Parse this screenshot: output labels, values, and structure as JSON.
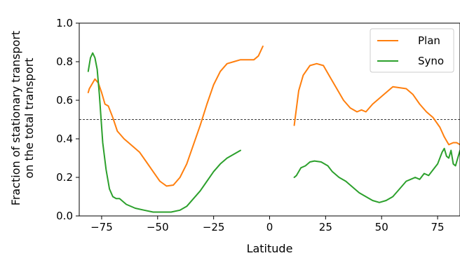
{
  "chart_data": {
    "type": "line",
    "title": "",
    "xlabel": "Latitude",
    "ylabel_lines": [
      "Fraction of stationary transport",
      "on the total transport"
    ],
    "xlim": [
      -85,
      85
    ],
    "ylim": [
      0.0,
      1.0
    ],
    "xticks": [
      -75,
      -50,
      -25,
      0,
      25,
      50,
      75
    ],
    "yticks": [
      0.0,
      0.2,
      0.4,
      0.6,
      0.8,
      1.0
    ],
    "grid": false,
    "legend_position": "top-right",
    "reference_line": {
      "y": 0.5,
      "style": "dashed"
    },
    "series": [
      {
        "name": "Plan",
        "color": "#ff7f0e",
        "segments": [
          [
            [
              -81,
              0.64
            ],
            [
              -80.5,
              0.66
            ],
            [
              -79.5,
              0.68
            ],
            [
              -78,
              0.71
            ],
            [
              -76.5,
              0.69
            ],
            [
              -75,
              0.64
            ],
            [
              -73.5,
              0.58
            ],
            [
              -72,
              0.57
            ],
            [
              -70,
              0.51
            ],
            [
              -68,
              0.44
            ],
            [
              -65,
              0.4
            ],
            [
              -62,
              0.37
            ],
            [
              -58,
              0.33
            ],
            [
              -55,
              0.28
            ],
            [
              -52,
              0.23
            ],
            [
              -49,
              0.18
            ],
            [
              -46,
              0.155
            ],
            [
              -43,
              0.16
            ],
            [
              -40,
              0.2
            ],
            [
              -37,
              0.27
            ],
            [
              -34,
              0.37
            ],
            [
              -31,
              0.47
            ],
            [
              -28,
              0.58
            ],
            [
              -25,
              0.68
            ],
            [
              -22,
              0.75
            ],
            [
              -19,
              0.79
            ],
            [
              -16,
              0.8
            ],
            [
              -13,
              0.81
            ],
            [
              -10,
              0.81
            ],
            [
              -7,
              0.81
            ],
            [
              -5,
              0.83
            ],
            [
              -3,
              0.88
            ]
          ],
          [
            [
              11,
              0.47
            ],
            [
              12,
              0.56
            ],
            [
              13,
              0.65
            ],
            [
              15,
              0.73
            ],
            [
              18,
              0.78
            ],
            [
              21,
              0.79
            ],
            [
              24,
              0.78
            ],
            [
              27,
              0.72
            ],
            [
              30,
              0.66
            ],
            [
              33,
              0.6
            ],
            [
              36,
              0.56
            ],
            [
              39,
              0.54
            ],
            [
              41,
              0.55
            ],
            [
              43,
              0.54
            ],
            [
              46,
              0.58
            ],
            [
              49,
              0.61
            ],
            [
              52,
              0.64
            ],
            [
              55,
              0.67
            ],
            [
              58,
              0.665
            ],
            [
              61,
              0.66
            ],
            [
              64,
              0.63
            ],
            [
              67,
              0.58
            ],
            [
              70,
              0.54
            ],
            [
              73,
              0.51
            ],
            [
              76,
              0.46
            ],
            [
              78,
              0.41
            ],
            [
              80,
              0.37
            ],
            [
              82,
              0.38
            ],
            [
              83.5,
              0.38
            ],
            [
              85,
              0.37
            ]
          ]
        ]
      },
      {
        "name": "Syno",
        "color": "#2ca02c",
        "segments": [
          [
            [
              -81,
              0.75
            ],
            [
              -80,
              0.82
            ],
            [
              -79,
              0.845
            ],
            [
              -78,
              0.82
            ],
            [
              -77,
              0.76
            ],
            [
              -76,
              0.63
            ],
            [
              -74.5,
              0.38
            ],
            [
              -73,
              0.24
            ],
            [
              -71.5,
              0.14
            ],
            [
              -70,
              0.1
            ],
            [
              -68.5,
              0.09
            ],
            [
              -67,
              0.09
            ],
            [
              -64,
              0.06
            ],
            [
              -60,
              0.04
            ],
            [
              -56,
              0.03
            ],
            [
              -52,
              0.02
            ],
            [
              -48,
              0.02
            ],
            [
              -44,
              0.02
            ],
            [
              -40,
              0.03
            ],
            [
              -37,
              0.05
            ],
            [
              -34,
              0.09
            ],
            [
              -31,
              0.13
            ],
            [
              -28,
              0.18
            ],
            [
              -25,
              0.23
            ],
            [
              -22,
              0.27
            ],
            [
              -19,
              0.3
            ],
            [
              -16,
              0.32
            ],
            [
              -13,
              0.34
            ]
          ],
          [
            [
              11,
              0.2
            ],
            [
              12,
              0.21
            ],
            [
              14,
              0.25
            ],
            [
              16,
              0.26
            ],
            [
              18,
              0.28
            ],
            [
              20,
              0.285
            ],
            [
              23,
              0.28
            ],
            [
              26,
              0.26
            ],
            [
              28,
              0.23
            ],
            [
              31,
              0.2
            ],
            [
              34,
              0.18
            ],
            [
              37,
              0.15
            ],
            [
              40,
              0.12
            ],
            [
              43,
              0.1
            ],
            [
              46,
              0.08
            ],
            [
              49,
              0.07
            ],
            [
              52,
              0.08
            ],
            [
              55,
              0.1
            ],
            [
              58,
              0.14
            ],
            [
              61,
              0.18
            ],
            [
              63,
              0.19
            ],
            [
              65,
              0.2
            ],
            [
              67,
              0.19
            ],
            [
              69,
              0.22
            ],
            [
              71,
              0.21
            ],
            [
              73,
              0.24
            ],
            [
              75,
              0.27
            ],
            [
              77,
              0.33
            ],
            [
              78,
              0.35
            ],
            [
              79,
              0.31
            ],
            [
              80,
              0.3
            ],
            [
              81,
              0.34
            ],
            [
              82,
              0.27
            ],
            [
              83,
              0.26
            ],
            [
              84,
              0.3
            ],
            [
              85,
              0.34
            ]
          ]
        ]
      }
    ]
  }
}
